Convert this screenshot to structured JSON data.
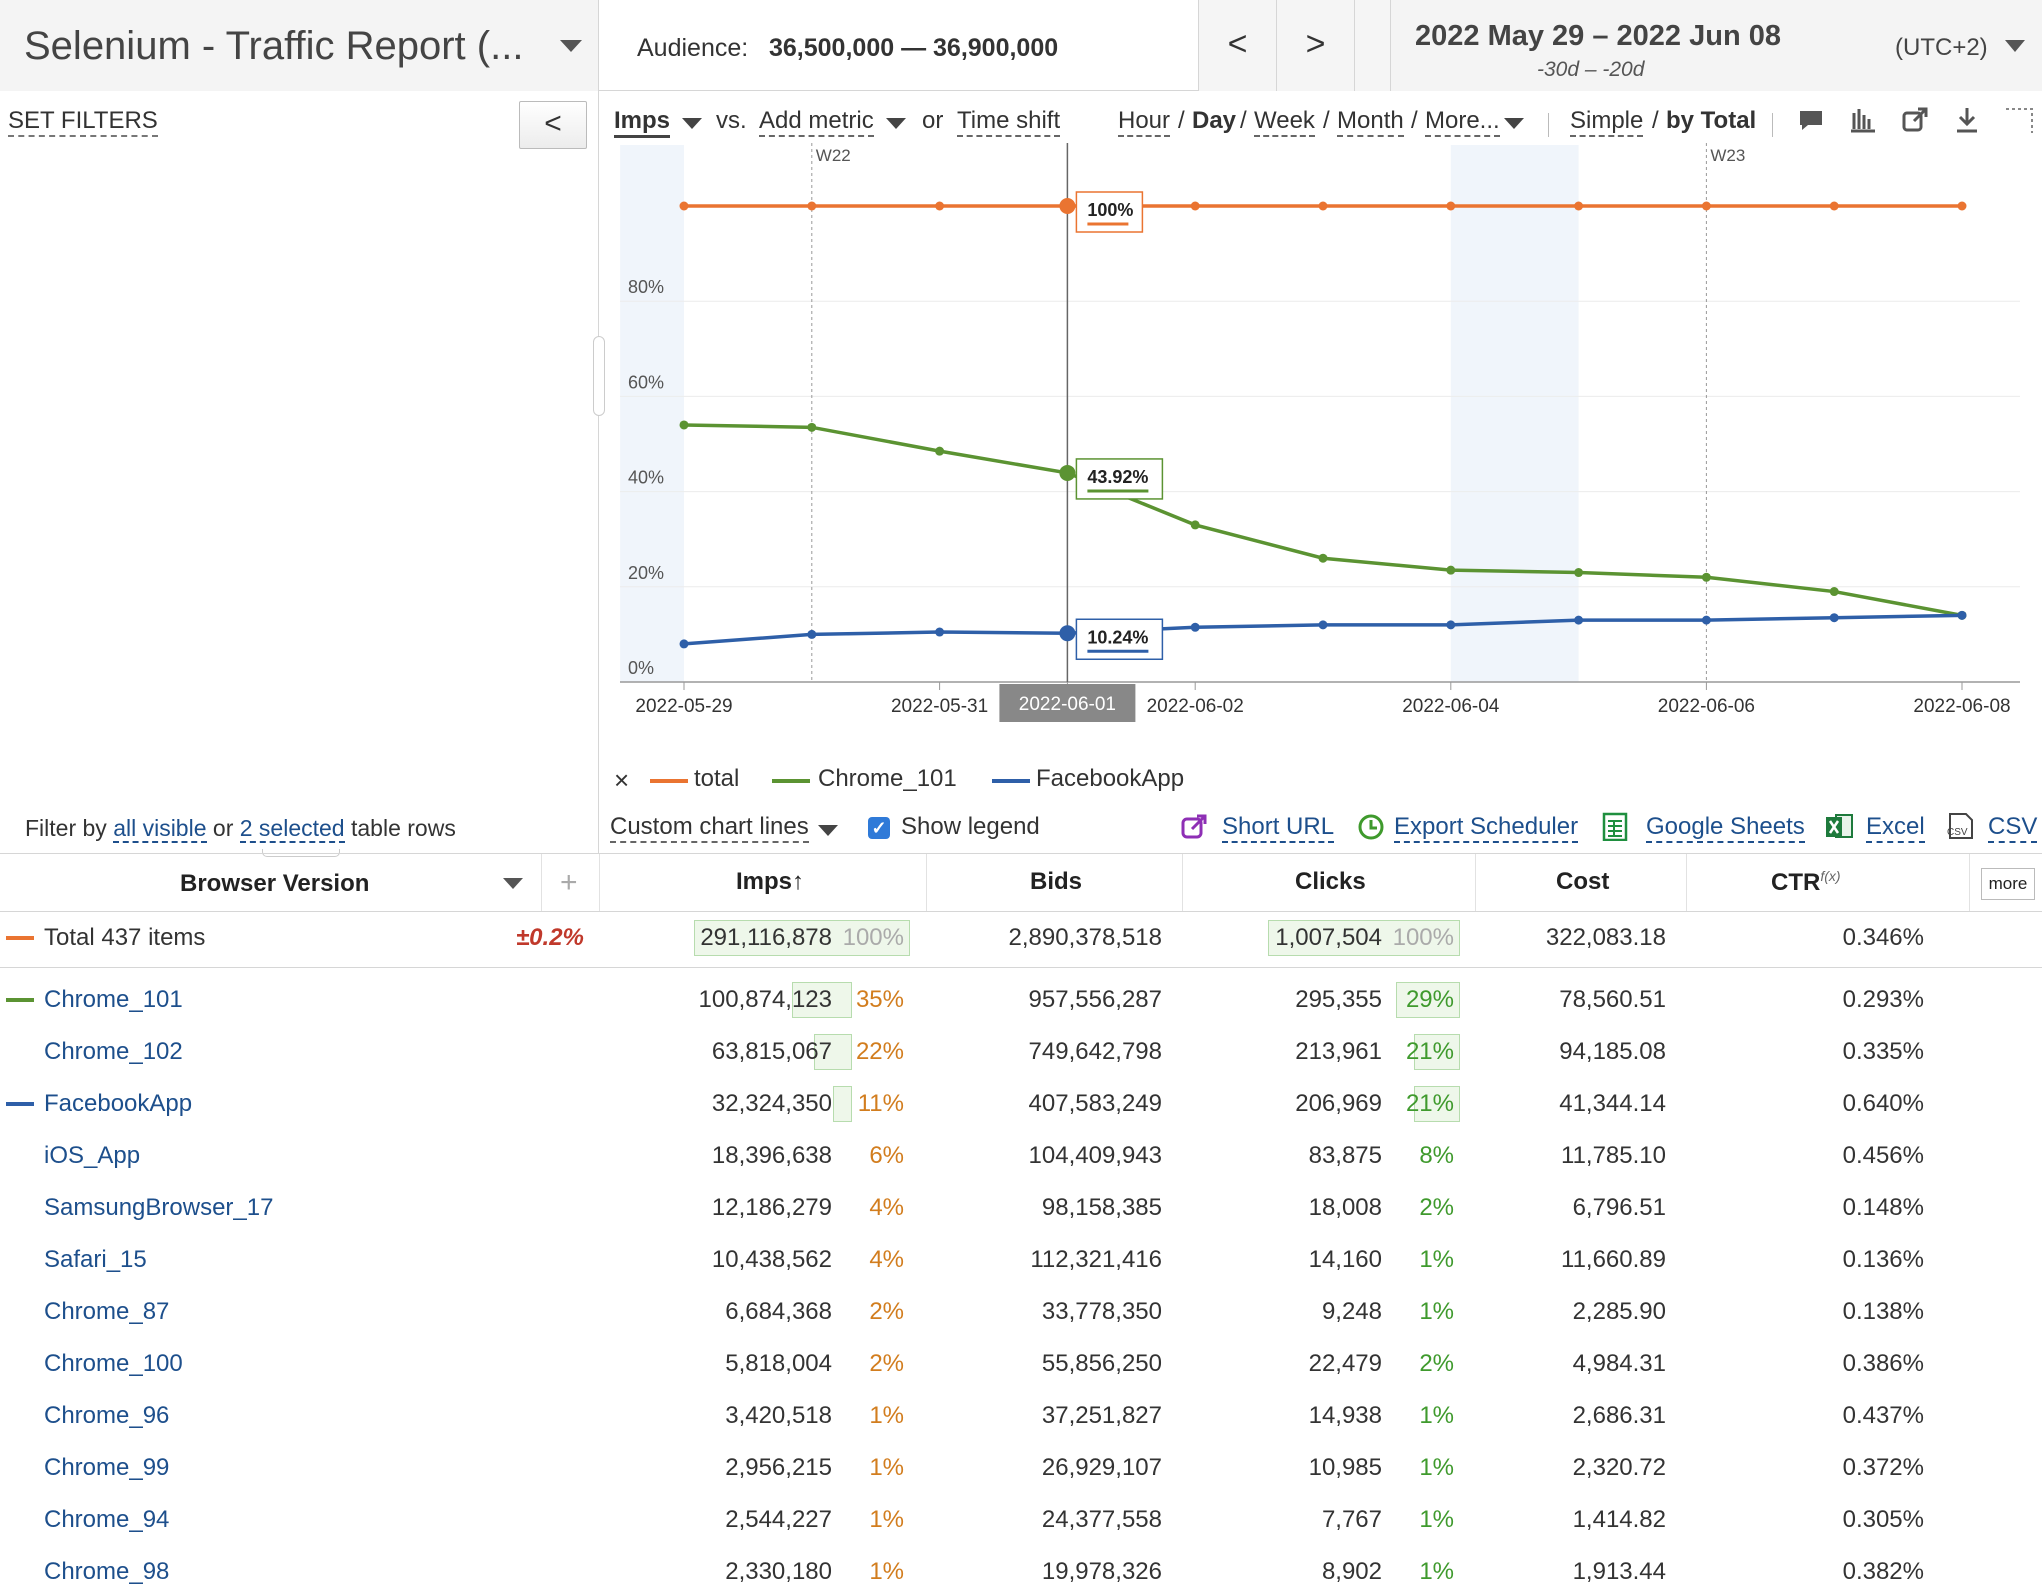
{
  "header": {
    "title": "Selenium - Traffic Report (...",
    "audience_label": "Audience:",
    "audience_value": "36,500,000 — 36,900,000",
    "prev_label": "<",
    "next_label": ">",
    "date_range": "2022 May 29 – 2022 Jun 08",
    "relative": "-30d – -20d",
    "timezone": "(UTC+2)"
  },
  "left_panel": {
    "set_filters": "SET FILTERS",
    "collapse_label": "<",
    "filter_by_prefix": "Filter by",
    "filter_all_visible": "all visible",
    "filter_or": "or",
    "filter_selected": "2 selected",
    "filter_suffix": "table rows"
  },
  "toolbar": {
    "metric": "Imps",
    "vs": "vs.",
    "add_metric": "Add metric",
    "or": "or",
    "time_shift": "Time shift",
    "granularity": [
      "Hour",
      "Day",
      "Week",
      "Month",
      "More..."
    ],
    "active_granularity": "Day",
    "slash": "/",
    "mode_simple": "Simple",
    "mode_total": "by Total",
    "icons": [
      "comment-icon",
      "bar-chart-icon",
      "external-link-icon",
      "download-icon",
      "expand-icon"
    ]
  },
  "chart_data": {
    "type": "line",
    "x": [
      "2022-05-29",
      "2022-05-30",
      "2022-05-31",
      "2022-06-01",
      "2022-06-02",
      "2022-06-03",
      "2022-06-04",
      "2022-06-05",
      "2022-06-06",
      "2022-06-07",
      "2022-06-08"
    ],
    "x_tick_labels": [
      "2022-05-29",
      "2022-05-31",
      "2022-06-01",
      "2022-06-02",
      "2022-06-04",
      "2022-06-06",
      "2022-06-08"
    ],
    "y_tick_labels": [
      "0%",
      "20%",
      "40%",
      "60%",
      "80%"
    ],
    "ylim": [
      0,
      100
    ],
    "week_markers": [
      {
        "x": "2022-05-30",
        "label": "W22"
      },
      {
        "x": "2022-06-06",
        "label": "W23"
      }
    ],
    "weekend_bands": [
      [
        "2022-05-28",
        "2022-05-29"
      ],
      [
        "2022-06-04",
        "2022-06-05"
      ]
    ],
    "hover_x": "2022-06-01",
    "hover_x_label": "2022-06-01",
    "series": [
      {
        "name": "total",
        "color": "#ea7431",
        "values": [
          100,
          100,
          100,
          100,
          100,
          100,
          100,
          100,
          100,
          100,
          100
        ],
        "hover_label": "100%"
      },
      {
        "name": "Chrome_101",
        "color": "#5b9332",
        "values": [
          54,
          53.5,
          48.5,
          43.92,
          33,
          26,
          23.5,
          23,
          22,
          19,
          14
        ],
        "hover_label": "43.92%"
      },
      {
        "name": "FacebookApp",
        "color": "#2e5fa8",
        "values": [
          8,
          10,
          10.5,
          10.24,
          11.5,
          12,
          12,
          13,
          13,
          13.5,
          14
        ],
        "hover_label": "10.24%"
      }
    ],
    "grid": true
  },
  "legend": {
    "close": "×",
    "items": [
      {
        "label": "total",
        "color": "#ea7431"
      },
      {
        "label": "Chrome_101",
        "color": "#5b9332"
      },
      {
        "label": "FacebookApp",
        "color": "#2e5fa8"
      }
    ]
  },
  "chart_options": {
    "custom_chart_lines": "Custom chart lines",
    "show_legend": "Show legend",
    "short_url": "Short URL",
    "export_scheduler": "Export Scheduler",
    "google_sheets": "Google Sheets",
    "excel": "Excel",
    "csv": "CSV"
  },
  "table": {
    "dimension_header": "Browser Version",
    "add_col": "+",
    "columns": [
      "Imps",
      "Bids",
      "Clicks",
      "Cost",
      "CTR"
    ],
    "sort_arrow": "↑",
    "ctr_sup": "f(x)",
    "more": "more",
    "total": {
      "label": "Total 437 items",
      "deviation": "±0.2%",
      "imps": "291,116,878",
      "imps_pct": "100%",
      "bids": "2,890,378,518",
      "clicks": "1,007,504",
      "clicks_pct": "100%",
      "cost": "322,083.18",
      "ctr": "0.346%"
    },
    "rows": [
      {
        "name": "Chrome_101",
        "swatch": "#5b9332",
        "imps": "100,874,123",
        "imps_pct": "35%",
        "bids": "957,556,287",
        "clicks": "295,355",
        "clicks_pct": "29%",
        "cost": "78,560.51",
        "ctr": "0.293%",
        "imps_share": 0.35,
        "clicks_share": 0.29
      },
      {
        "name": "Chrome_102",
        "swatch": "",
        "imps": "63,815,067",
        "imps_pct": "22%",
        "bids": "749,642,798",
        "clicks": "213,961",
        "clicks_pct": "21%",
        "cost": "94,185.08",
        "ctr": "0.335%",
        "imps_share": 0.22,
        "clicks_share": 0.21
      },
      {
        "name": "FacebookApp",
        "swatch": "#2e5fa8",
        "imps": "32,324,350",
        "imps_pct": "11%",
        "bids": "407,583,249",
        "clicks": "206,969",
        "clicks_pct": "21%",
        "cost": "41,344.14",
        "ctr": "0.640%",
        "imps_share": 0.11,
        "clicks_share": 0.21
      },
      {
        "name": "iOS_App",
        "swatch": "",
        "imps": "18,396,638",
        "imps_pct": "6%",
        "bids": "104,409,943",
        "clicks": "83,875",
        "clicks_pct": "8%",
        "cost": "11,785.10",
        "ctr": "0.456%",
        "imps_share": 0,
        "clicks_share": 0
      },
      {
        "name": "SamsungBrowser_17",
        "swatch": "",
        "imps": "12,186,279",
        "imps_pct": "4%",
        "bids": "98,158,385",
        "clicks": "18,008",
        "clicks_pct": "2%",
        "cost": "6,796.51",
        "ctr": "0.148%",
        "imps_share": 0,
        "clicks_share": 0
      },
      {
        "name": "Safari_15",
        "swatch": "",
        "imps": "10,438,562",
        "imps_pct": "4%",
        "bids": "112,321,416",
        "clicks": "14,160",
        "clicks_pct": "1%",
        "cost": "11,660.89",
        "ctr": "0.136%",
        "imps_share": 0,
        "clicks_share": 0
      },
      {
        "name": "Chrome_87",
        "swatch": "",
        "imps": "6,684,368",
        "imps_pct": "2%",
        "bids": "33,778,350",
        "clicks": "9,248",
        "clicks_pct": "1%",
        "cost": "2,285.90",
        "ctr": "0.138%",
        "imps_share": 0,
        "clicks_share": 0
      },
      {
        "name": "Chrome_100",
        "swatch": "",
        "imps": "5,818,004",
        "imps_pct": "2%",
        "bids": "55,856,250",
        "clicks": "22,479",
        "clicks_pct": "2%",
        "cost": "4,984.31",
        "ctr": "0.386%",
        "imps_share": 0,
        "clicks_share": 0
      },
      {
        "name": "Chrome_96",
        "swatch": "",
        "imps": "3,420,518",
        "imps_pct": "1%",
        "bids": "37,251,827",
        "clicks": "14,938",
        "clicks_pct": "1%",
        "cost": "2,686.31",
        "ctr": "0.437%",
        "imps_share": 0,
        "clicks_share": 0
      },
      {
        "name": "Chrome_99",
        "swatch": "",
        "imps": "2,956,215",
        "imps_pct": "1%",
        "bids": "26,929,107",
        "clicks": "10,985",
        "clicks_pct": "1%",
        "cost": "2,320.72",
        "ctr": "0.372%",
        "imps_share": 0,
        "clicks_share": 0
      },
      {
        "name": "Chrome_94",
        "swatch": "",
        "imps": "2,544,227",
        "imps_pct": "1%",
        "bids": "24,377,558",
        "clicks": "7,767",
        "clicks_pct": "1%",
        "cost": "1,414.82",
        "ctr": "0.305%",
        "imps_share": 0,
        "clicks_share": 0
      },
      {
        "name": "Chrome_98",
        "swatch": "",
        "imps": "2,330,180",
        "imps_pct": "1%",
        "bids": "19,978,326",
        "clicks": "8,902",
        "clicks_pct": "1%",
        "cost": "1,913.44",
        "ctr": "0.382%",
        "imps_share": 0,
        "clicks_share": 0
      }
    ]
  }
}
